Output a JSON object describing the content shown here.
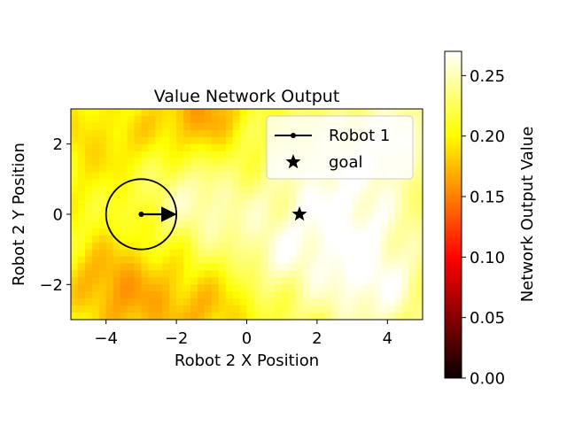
{
  "chart_data": {
    "type": "heatmap",
    "title": "Value Network Output",
    "xlabel": "Robot 2 X Position",
    "ylabel": "Robot 2 Y Position",
    "xlim": [
      -5,
      5
    ],
    "ylim": [
      -3,
      3
    ],
    "xticks": [
      -4,
      -2,
      0,
      2,
      4
    ],
    "yticks": [
      -2,
      0,
      2
    ],
    "xtick_labels": [
      "−4",
      "−2",
      "0",
      "2",
      "4"
    ],
    "ytick_labels": [
      "−2",
      "0",
      "2"
    ],
    "colormap": "hot",
    "colorbar": {
      "label": "Network Output Value",
      "range": [
        0,
        0.27
      ],
      "ticks": [
        0,
        0.05,
        0.1,
        0.15,
        0.2,
        0.25
      ],
      "tick_labels": [
        "0.00",
        "0.05",
        "0.10",
        "0.15",
        "0.20",
        "0.25"
      ]
    },
    "grid": false,
    "legend": {
      "placement": "top-right",
      "entries": [
        {
          "label": "Robot 1",
          "marker": "line-with-dot"
        },
        {
          "label": "goal",
          "marker": "star"
        }
      ]
    },
    "robot1": {
      "x": -3,
      "y": 0,
      "radius": 1,
      "heading": [
        1,
        0
      ]
    },
    "goal": {
      "x": 1.5,
      "y": 0
    }
  }
}
